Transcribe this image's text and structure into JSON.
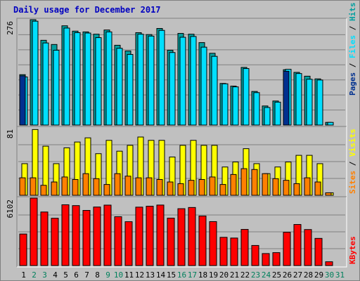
{
  "title": "Daily usage for December 2017",
  "right_labels": {
    "top": {
      "pages": "Pages",
      "files": "Files",
      "hits": "Hits",
      "sep": " / "
    },
    "middle": {
      "sites": "Sites",
      "visits": "Visits",
      "sep": " / "
    },
    "bottom": {
      "kbytes": "KBytes"
    }
  },
  "colors": {
    "hits": "#009f9f",
    "files": "#00dfff",
    "pages": "#00308f",
    "visits": "#ffff00",
    "sites": "#ff8000",
    "kbytes": "#ff0000",
    "title": "#0000c0",
    "grid": "#808080",
    "panel": "#c0c0c0",
    "weekend_day": "#00805c",
    "weekday": "#000000"
  },
  "chart_data": [
    {
      "type": "bar",
      "title": "Daily usage for December 2017",
      "ylabel": "276",
      "ymax": 276,
      "categories": [
        "1",
        "2",
        "3",
        "4",
        "5",
        "6",
        "7",
        "8",
        "9",
        "10",
        "11",
        "12",
        "13",
        "14",
        "15",
        "16",
        "17",
        "18",
        "19",
        "20",
        "21",
        "22",
        "23",
        "24",
        "25",
        "26",
        "27",
        "28",
        "29",
        "30",
        "31"
      ],
      "series": [
        {
          "name": "Hits",
          "values": [
            132,
            276,
            222,
            211,
            260,
            246,
            244,
            238,
            249,
            209,
            194,
            242,
            237,
            253,
            196,
            240,
            238,
            216,
            188,
            109,
            102,
            151,
            88,
            50,
            63,
            145,
            138,
            128,
            121,
            7,
            0
          ]
        },
        {
          "name": "Files",
          "values": [
            126,
            272,
            215,
            196,
            254,
            242,
            241,
            229,
            244,
            201,
            185,
            238,
            233,
            248,
            190,
            230,
            232,
            204,
            180,
            108,
            100,
            148,
            85,
            46,
            60,
            146,
            135,
            120,
            118,
            7,
            0
          ]
        },
        {
          "name": "Pages",
          "values": [
            129,
            0,
            0,
            0,
            0,
            0,
            0,
            0,
            0,
            0,
            0,
            0,
            0,
            0,
            0,
            0,
            0,
            0,
            0,
            0,
            0,
            0,
            0,
            0,
            0,
            141,
            0,
            0,
            0,
            0,
            0
          ]
        }
      ]
    },
    {
      "type": "bar",
      "ylabel": "81",
      "ymax": 81,
      "categories": [
        "1",
        "2",
        "3",
        "4",
        "5",
        "6",
        "7",
        "8",
        "9",
        "10",
        "11",
        "12",
        "13",
        "14",
        "15",
        "16",
        "17",
        "18",
        "19",
        "20",
        "21",
        "22",
        "23",
        "24",
        "25",
        "26",
        "27",
        "28",
        "29",
        "30",
        "31"
      ],
      "series": [
        {
          "name": "Visits",
          "values": [
            38,
            79,
            59,
            38,
            57,
            64,
            69,
            50,
            66,
            53,
            60,
            70,
            66,
            66,
            46,
            60,
            66,
            60,
            60,
            34,
            40,
            56,
            38,
            26,
            34,
            40,
            48,
            48,
            38,
            3,
            0
          ]
        },
        {
          "name": "Sites",
          "values": [
            21,
            21,
            12,
            16,
            22,
            19,
            26,
            20,
            13,
            26,
            23,
            21,
            21,
            19,
            16,
            14,
            18,
            19,
            22,
            13,
            25,
            32,
            31,
            26,
            20,
            18,
            14,
            21,
            16,
            3,
            0
          ]
        }
      ]
    },
    {
      "type": "bar",
      "ylabel": "6102",
      "ymax": 6102,
      "categories": [
        "1",
        "2",
        "3",
        "4",
        "5",
        "6",
        "7",
        "8",
        "9",
        "10",
        "11",
        "12",
        "13",
        "14",
        "15",
        "16",
        "17",
        "18",
        "19",
        "20",
        "21",
        "22",
        "23",
        "24",
        "25",
        "26",
        "27",
        "28",
        "29",
        "30",
        "31"
      ],
      "series": [
        {
          "name": "KBytes",
          "values": [
            2852,
            6102,
            4846,
            4280,
            5500,
            5424,
            4989,
            5296,
            5468,
            4418,
            3968,
            5285,
            5371,
            5474,
            4292,
            5145,
            5254,
            4483,
            3976,
            2553,
            2489,
            3271,
            1817,
            1086,
            1169,
            3010,
            3716,
            3258,
            2458,
            343,
            0
          ]
        }
      ]
    }
  ]
}
